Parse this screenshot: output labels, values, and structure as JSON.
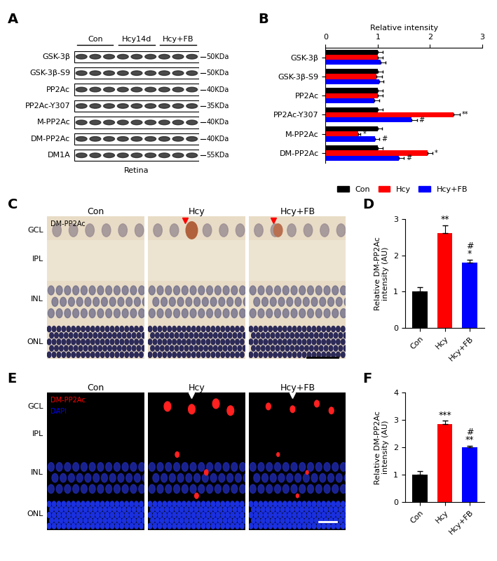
{
  "panels": {
    "A": {
      "panel_label": "A",
      "groups": [
        "Con",
        "Hcy14d",
        "Hcy+FB"
      ],
      "rows": [
        {
          "name": "GSK-3β",
          "mw": "50KDa"
        },
        {
          "name": "GSK-3β-S9",
          "mw": "50KDa"
        },
        {
          "name": "PP2Ac",
          "mw": "40KDa"
        },
        {
          "name": "PP2Ac-Y307",
          "mw": "35KDa"
        },
        {
          "name": "M-PP2Ac",
          "mw": "40KDa"
        },
        {
          "name": "DM-PP2Ac",
          "mw": "40KDa"
        },
        {
          "name": "DM1A",
          "mw": "55KDa"
        }
      ],
      "tissue": "Retina"
    },
    "C": {
      "panel_label": "C",
      "stain": "DM-PP2Ac",
      "conditions": [
        "Con",
        "Hcy",
        "Hcy+FB"
      ],
      "layers": [
        "GCL",
        "IPL",
        "INL",
        "ONL"
      ]
    },
    "E": {
      "panel_label": "E",
      "stains": [
        {
          "name": "DM-PP2Ac",
          "color": "#ff0000"
        },
        {
          "name": "DAPI",
          "color": "#0000ff"
        }
      ],
      "conditions": [
        "Con",
        "Hcy",
        "Hcy+FB"
      ],
      "layers": [
        "GCL",
        "IPL",
        "INL",
        "ONL"
      ]
    }
  },
  "chart_data": [
    {
      "panel_label": "B",
      "type": "bar",
      "orientation": "horizontal",
      "xlabel": "Relative intensity",
      "categories": [
        "GSK-3β",
        "GSK-3β-S9",
        "PP2Ac",
        "PP2Ac-Y307",
        "M-PP2Ac",
        "DM-PP2Ac"
      ],
      "series": [
        {
          "name": "Con",
          "color": "#000000",
          "values": [
            1.0,
            1.0,
            1.0,
            1.0,
            1.0,
            1.0
          ],
          "errors": [
            0.1,
            0.1,
            0.1,
            0.1,
            0.08,
            0.1
          ],
          "significance": [
            null,
            null,
            null,
            null,
            null,
            null
          ]
        },
        {
          "name": "Hcy",
          "color": "#ff0000",
          "values": [
            1.0,
            0.98,
            1.0,
            2.45,
            0.62,
            1.95
          ],
          "errors": [
            0.1,
            0.1,
            0.1,
            0.12,
            0.05,
            0.1
          ],
          "significance": [
            null,
            null,
            null,
            "**",
            "*",
            "*"
          ]
        },
        {
          "name": "Hcy+FB",
          "color": "#0000ff",
          "values": [
            1.05,
            1.03,
            0.93,
            1.65,
            0.95,
            1.4
          ],
          "errors": [
            0.1,
            0.08,
            0.1,
            0.1,
            0.08,
            0.1
          ],
          "significance": [
            null,
            null,
            null,
            "#",
            "#",
            "#"
          ]
        }
      ],
      "xlim": [
        0,
        3
      ],
      "xticks": [
        0,
        1,
        2,
        3
      ],
      "legend": "lower center"
    },
    {
      "panel_label": "D",
      "type": "bar",
      "ylabel": "Relative DM-PP2Ac\nintensity (AU)",
      "categories": [
        "Con",
        "Hcy",
        "Hcy+FB"
      ],
      "values": [
        1.0,
        2.6,
        1.8
      ],
      "errors": [
        0.12,
        0.22,
        0.08
      ],
      "colors": [
        "#000000",
        "#ff0000",
        "#0000ff"
      ],
      "significance": [
        null,
        "**",
        "#\n*"
      ],
      "ylim": [
        0,
        3
      ],
      "yticks": [
        0,
        1,
        2,
        3
      ]
    },
    {
      "panel_label": "F",
      "type": "bar",
      "ylabel": "Relative DM-PP2Ac\nintensity (AU)",
      "categories": [
        "Con",
        "Hcy",
        "Hcy+FB"
      ],
      "values": [
        1.0,
        2.85,
        2.0
      ],
      "errors": [
        0.12,
        0.12,
        0.06
      ],
      "colors": [
        "#000000",
        "#ff0000",
        "#0000ff"
      ],
      "significance": [
        null,
        "***",
        "#\n**"
      ],
      "ylim": [
        0,
        4
      ],
      "yticks": [
        0,
        1,
        2,
        3,
        4
      ]
    }
  ]
}
